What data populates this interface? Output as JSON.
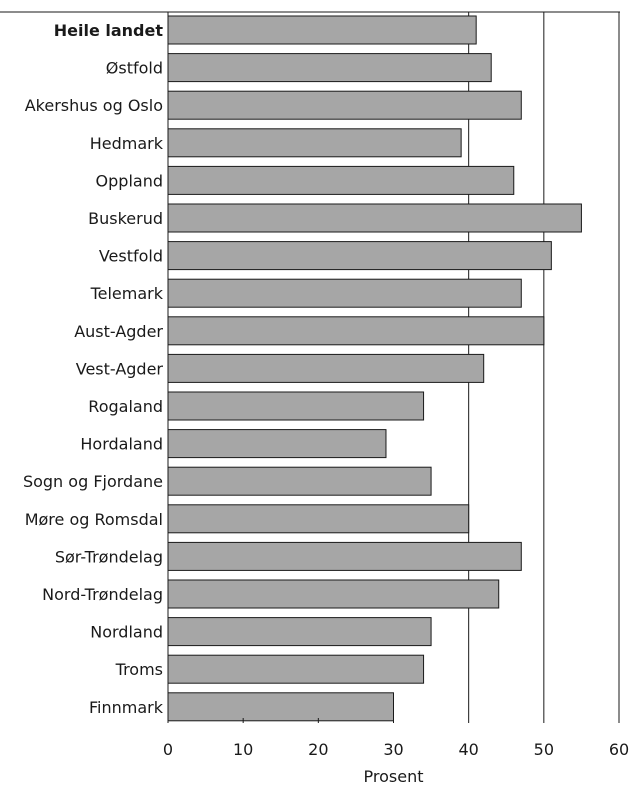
{
  "chart_data": {
    "type": "bar",
    "orientation": "horizontal",
    "categories": [
      "Heile landet",
      "Østfold",
      "Akershus og Oslo",
      "Hedmark",
      "Oppland",
      "Buskerud",
      "Vestfold",
      "Telemark",
      "Aust-Agder",
      "Vest-Agder",
      "Rogaland",
      "Hordaland",
      "Sogn og Fjordane",
      "Møre og Romsdal",
      "Sør-Trøndelag",
      "Nord-Trøndelag",
      "Nordland",
      "Troms",
      "Finnmark"
    ],
    "values": [
      41,
      43,
      47,
      39,
      46,
      55,
      51,
      47,
      50,
      42,
      34,
      29,
      35,
      40,
      47,
      44,
      35,
      34,
      30
    ],
    "bold_categories": [
      "Heile landet"
    ],
    "xlabel": "Prosent",
    "ylabel": "",
    "xlim": [
      0,
      60
    ],
    "xticks": [
      0,
      10,
      20,
      30,
      40,
      50,
      60
    ],
    "vertical_gridlines": [
      40,
      50,
      60
    ],
    "bar_color": "#a6a6a6",
    "outline_color": "#1a1a1a"
  }
}
